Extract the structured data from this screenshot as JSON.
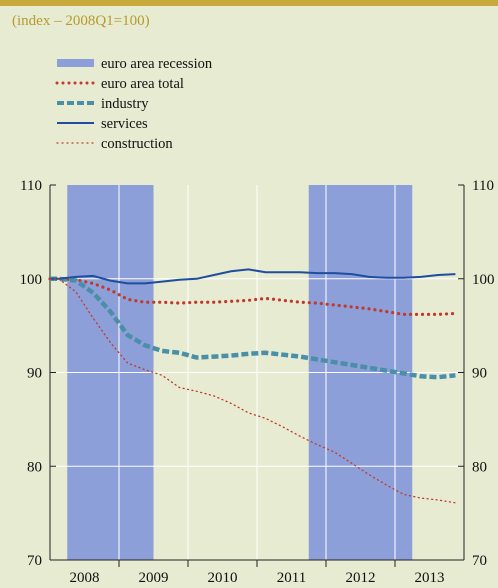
{
  "chart_data": {
    "type": "line",
    "subtitle": "(index – 2008Q1=100)",
    "legend": [
      "euro area recession",
      "euro area total",
      "industry",
      "services",
      "construction"
    ],
    "x_tick_labels": [
      "2008",
      "2009",
      "2010",
      "2011",
      "2012",
      "2013"
    ],
    "x_quarters": [
      "2008Q1",
      "2008Q2",
      "2008Q3",
      "2008Q4",
      "2009Q1",
      "2009Q2",
      "2009Q3",
      "2009Q4",
      "2010Q1",
      "2010Q2",
      "2010Q3",
      "2010Q4",
      "2011Q1",
      "2011Q2",
      "2011Q3",
      "2011Q4",
      "2012Q1",
      "2012Q2",
      "2012Q3",
      "2012Q4",
      "2013Q1",
      "2013Q2",
      "2013Q3",
      "2013Q4"
    ],
    "ylim": [
      70,
      110
    ],
    "y_ticks": [
      70,
      80,
      90,
      100,
      110
    ],
    "recessions": [
      {
        "start": "2008Q2",
        "end": "2009Q2"
      },
      {
        "start": "2011Q4",
        "end": "2013Q1"
      }
    ],
    "series": [
      {
        "name": "euro area total",
        "style": "dotted-heavy",
        "color": "#c0392b",
        "values": [
          100,
          99.9,
          99.5,
          98.8,
          97.8,
          97.5,
          97.5,
          97.4,
          97.5,
          97.5,
          97.6,
          97.7,
          97.9,
          97.7,
          97.5,
          97.4,
          97.2,
          97.0,
          96.8,
          96.5,
          96.2,
          96.2,
          96.2,
          96.3
        ]
      },
      {
        "name": "industry",
        "style": "dashed",
        "color": "#4a8fa8",
        "values": [
          100,
          99.8,
          98.5,
          96.5,
          94.0,
          92.9,
          92.3,
          92.1,
          91.6,
          91.7,
          91.8,
          92.0,
          92.1,
          91.9,
          91.7,
          91.4,
          91.1,
          90.8,
          90.5,
          90.2,
          89.9,
          89.6,
          89.5,
          89.7
        ]
      },
      {
        "name": "services",
        "style": "solid",
        "color": "#1f4e9e",
        "values": [
          100,
          100.2,
          100.3,
          99.8,
          99.5,
          99.5,
          99.7,
          99.9,
          100.0,
          100.4,
          100.8,
          101.0,
          100.7,
          100.7,
          100.7,
          100.6,
          100.6,
          100.5,
          100.2,
          100.1,
          100.1,
          100.2,
          100.4,
          100.5
        ]
      },
      {
        "name": "construction",
        "style": "dotted-fine",
        "color": "#c0392b",
        "values": [
          100,
          98.6,
          95.8,
          93.2,
          91.0,
          90.3,
          89.7,
          88.4,
          88.0,
          87.5,
          86.7,
          85.7,
          85.1,
          84.2,
          83.2,
          82.3,
          81.5,
          80.3,
          79.1,
          78.0,
          77.0,
          76.6,
          76.4,
          76.1
        ]
      }
    ],
    "grid": true
  }
}
